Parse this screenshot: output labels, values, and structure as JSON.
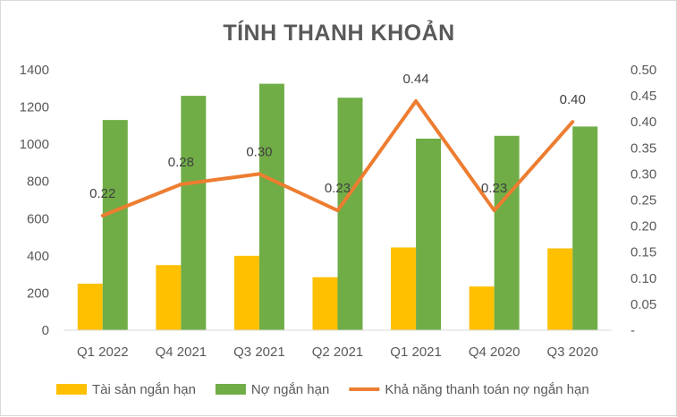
{
  "chart_data": {
    "type": "bar",
    "title": "TÍNH THANH KHOẢN",
    "categories": [
      "Q1 2022",
      "Q4 2021",
      "Q3 2021",
      "Q2 2021",
      "Q1 2021",
      "Q4 2020",
      "Q3 2020"
    ],
    "series": [
      {
        "name": "Tài sản ngắn hạn",
        "type": "bar",
        "axis": "left",
        "color": "#FFC000",
        "values": [
          250,
          350,
          400,
          285,
          445,
          235,
          440
        ]
      },
      {
        "name": "Nợ ngắn hạn",
        "type": "bar",
        "axis": "left",
        "color": "#70AD47",
        "values": [
          1130,
          1260,
          1325,
          1250,
          1030,
          1045,
          1095
        ]
      },
      {
        "name": "Khả năng thanh toán nợ ngắn hạn",
        "type": "line",
        "axis": "right",
        "color": "#ED7D31",
        "values": [
          0.22,
          0.28,
          0.3,
          0.23,
          0.44,
          0.23,
          0.4
        ],
        "labels": [
          "0.22",
          "0.28",
          "0.30",
          "0.23",
          "0.44",
          "0.23",
          "0.40"
        ]
      }
    ],
    "y_left": {
      "min": 0,
      "max": 1400,
      "step": 200,
      "ticks": [
        "0",
        "200",
        "400",
        "600",
        "800",
        "1000",
        "1200",
        "1400"
      ]
    },
    "y_right": {
      "min": 0,
      "max": 0.5,
      "step": 0.05,
      "ticks": [
        "-",
        "0.05",
        "0.10",
        "0.15",
        "0.20",
        "0.25",
        "0.30",
        "0.35",
        "0.40",
        "0.45",
        "0.50"
      ]
    },
    "grid": false,
    "legend_position": "bottom"
  }
}
